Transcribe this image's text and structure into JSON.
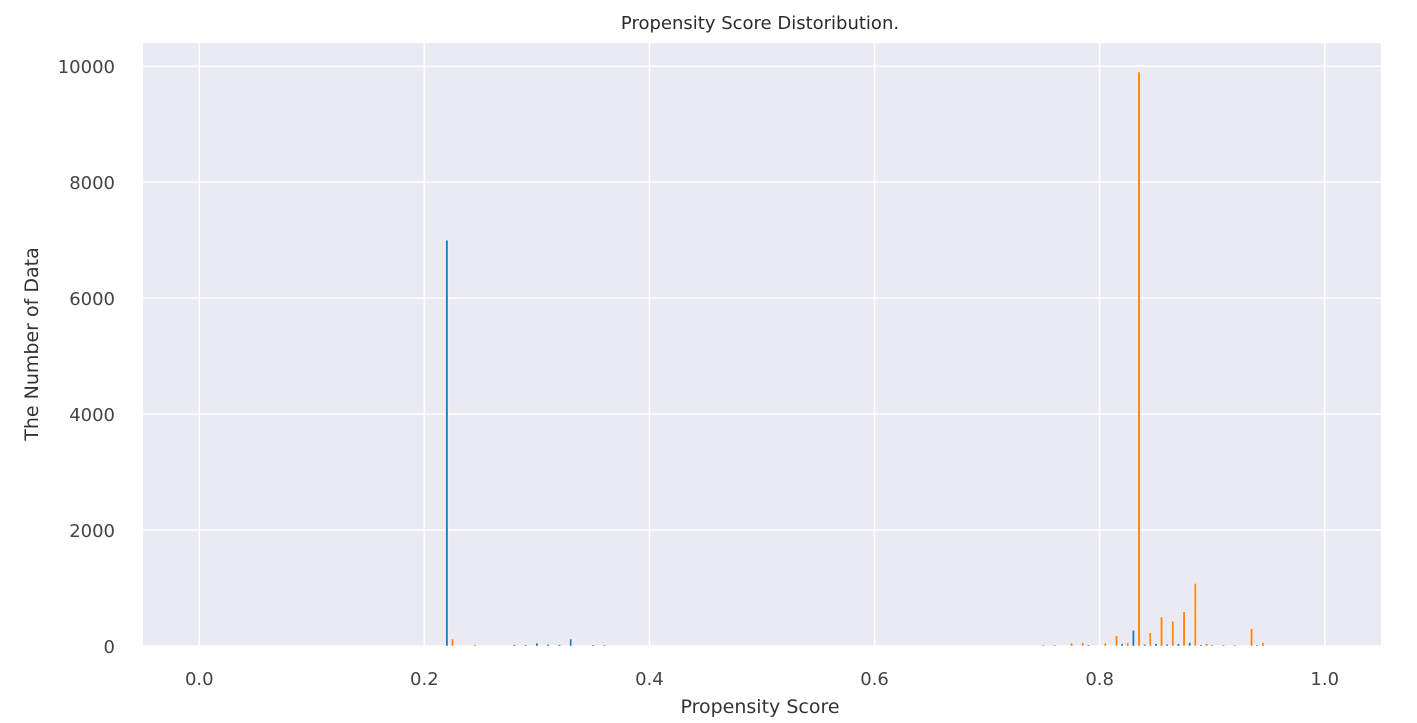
{
  "chart_data": {
    "type": "bar",
    "title": "Propensity Score Distoribution.",
    "xlabel": "Propensity Score",
    "ylabel": "The Number of Data",
    "xlim": [
      -0.05,
      1.05
    ],
    "ylim": [
      0,
      10400
    ],
    "x_ticks": [
      "0.0",
      "0.2",
      "0.4",
      "0.6",
      "0.8",
      "1.0"
    ],
    "y_ticks": [
      "0",
      "2000",
      "4000",
      "6000",
      "8000",
      "10000"
    ],
    "grid": true,
    "legend": "none",
    "bin_width": 0.002,
    "series": [
      {
        "color": "#1f77b4",
        "points": [
          [
            0.22,
            7000
          ],
          [
            0.245,
            20
          ],
          [
            0.28,
            25
          ],
          [
            0.29,
            20
          ],
          [
            0.3,
            50
          ],
          [
            0.31,
            30
          ],
          [
            0.32,
            25
          ],
          [
            0.33,
            120
          ],
          [
            0.35,
            20
          ],
          [
            0.36,
            15
          ],
          [
            0.75,
            15
          ],
          [
            0.76,
            15
          ],
          [
            0.79,
            20
          ],
          [
            0.82,
            40
          ],
          [
            0.83,
            270
          ],
          [
            0.84,
            30
          ],
          [
            0.85,
            40
          ],
          [
            0.86,
            30
          ],
          [
            0.87,
            40
          ],
          [
            0.88,
            60
          ],
          [
            0.89,
            20
          ],
          [
            0.9,
            15
          ],
          [
            0.91,
            15
          ],
          [
            0.92,
            15
          ],
          [
            0.94,
            20
          ]
        ]
      },
      {
        "color": "#ff7f0e",
        "points": [
          [
            0.225,
            120
          ],
          [
            0.245,
            25
          ],
          [
            0.775,
            50
          ],
          [
            0.785,
            60
          ],
          [
            0.805,
            50
          ],
          [
            0.815,
            180
          ],
          [
            0.825,
            60
          ],
          [
            0.835,
            9900
          ],
          [
            0.845,
            230
          ],
          [
            0.855,
            500
          ],
          [
            0.865,
            430
          ],
          [
            0.875,
            590
          ],
          [
            0.885,
            1080
          ],
          [
            0.895,
            40
          ],
          [
            0.935,
            300
          ],
          [
            0.945,
            60
          ]
        ]
      }
    ]
  }
}
